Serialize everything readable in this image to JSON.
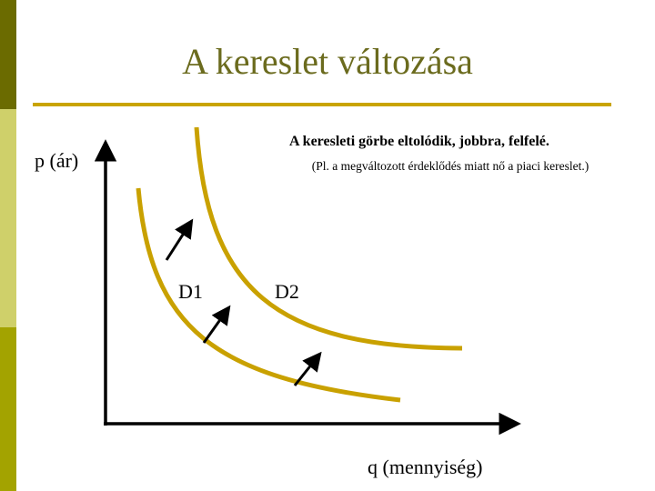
{
  "slide": {
    "title": "A kereslet változása",
    "annotation_main": "A keresleti görbe eltolódik, jobbra, felfelé.",
    "annotation_sub": "(Pl. a megváltozott érdeklődés miatt nő a piaci kereslet.)"
  },
  "axes": {
    "y_label": "p (ár)",
    "x_label": "q (mennyiség)"
  },
  "curves": {
    "d1_label": "D1",
    "d2_label": "D2",
    "color": "#c9a100"
  },
  "colors": {
    "title": "#6b6b1e",
    "rule": "#c9a400",
    "sidebar": [
      "#6b6b00",
      "#cfd06a",
      "#a3a300"
    ]
  }
}
